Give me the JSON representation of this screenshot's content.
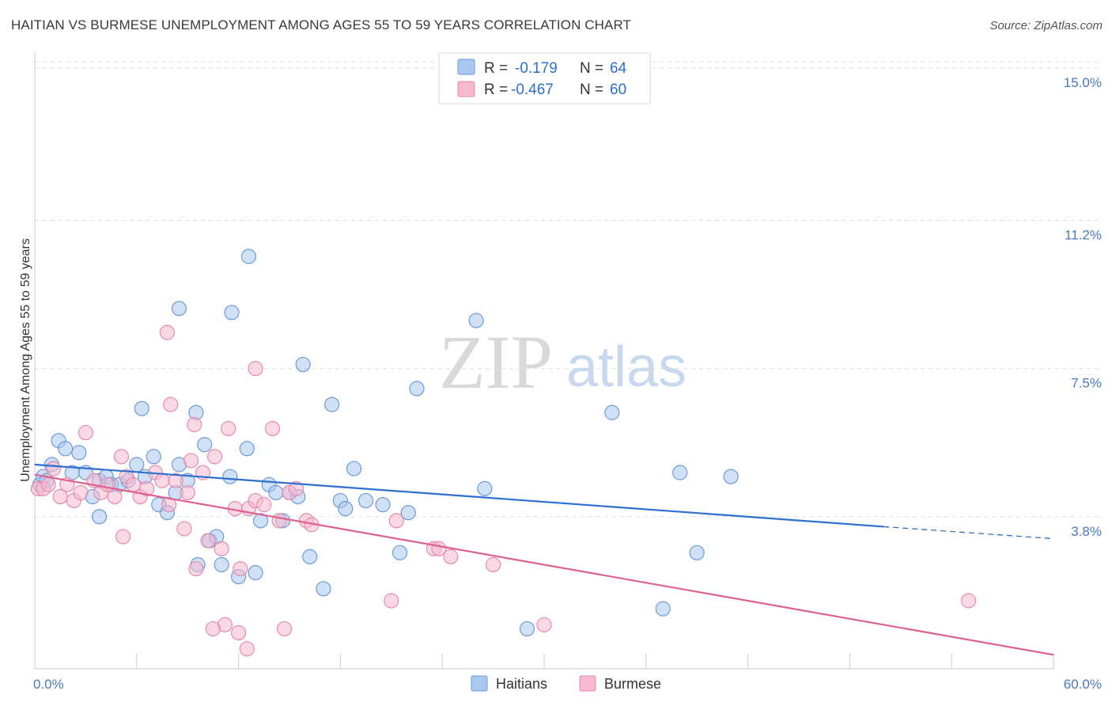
{
  "title": "HAITIAN VS BURMESE UNEMPLOYMENT AMONG AGES 55 TO 59 YEARS CORRELATION CHART",
  "source": "Source: ZipAtlas.com",
  "watermark": {
    "zip": "ZIP",
    "atlas": "atlas"
  },
  "colors": {
    "haitians_fill": "#a9c8f0",
    "haitians_stroke": "#6d9ad6",
    "haitians_line": "#2e6fd1",
    "burmese_fill": "#f6b9cf",
    "burmese_stroke": "#e58bab",
    "burmese_line": "#e0608e",
    "grid": "#dddddd",
    "tick_label": "#4a78c0"
  },
  "legend_top": [
    {
      "r_label": "R =",
      "r_value": "-0.179",
      "n_label": "N =",
      "n_value": "64",
      "series": "Haitians"
    },
    {
      "r_label": "R =",
      "r_value": "-0.467",
      "n_label": "N =",
      "n_value": "60",
      "series": "Burmese"
    }
  ],
  "legend_bottom": [
    "Haitians",
    "Burmese"
  ],
  "chart_data": {
    "type": "scatter",
    "title": "HAITIAN VS BURMESE UNEMPLOYMENT AMONG AGES 55 TO 59 YEARS CORRELATION CHART",
    "xlabel": "",
    "ylabel": "Unemployment Among Ages 55 to 59 years",
    "xlim": [
      0,
      60
    ],
    "ylim": [
      0,
      15.4
    ],
    "x_tick_labels": [
      "0.0%",
      "60.0%"
    ],
    "y_ticks": [
      3.8,
      7.5,
      11.2,
      15.0
    ],
    "y_tick_labels": [
      "3.8%",
      "7.5%",
      "11.2%",
      "15.0%"
    ],
    "grid": "horizontal dashed",
    "legend_position": "top-center",
    "series": [
      {
        "name": "Haitians",
        "trend": {
          "x": [
            0,
            50
          ],
          "y": [
            5.1,
            3.55
          ],
          "dashed_extension_to": [
            60,
            3.25
          ]
        },
        "points": [
          [
            0.3,
            4.6
          ],
          [
            0.5,
            4.8
          ],
          [
            0.7,
            4.7
          ],
          [
            1.0,
            5.1
          ],
          [
            1.4,
            5.7
          ],
          [
            1.8,
            5.5
          ],
          [
            2.2,
            4.9
          ],
          [
            2.6,
            5.4
          ],
          [
            3.0,
            4.9
          ],
          [
            3.4,
            4.3
          ],
          [
            3.8,
            4.7
          ],
          [
            4.2,
            4.8
          ],
          [
            4.5,
            4.6
          ],
          [
            5.0,
            4.6
          ],
          [
            5.5,
            4.7
          ],
          [
            6.0,
            5.1
          ],
          [
            6.5,
            4.8
          ],
          [
            7.0,
            5.3
          ],
          [
            7.3,
            4.1
          ],
          [
            7.8,
            3.9
          ],
          [
            8.3,
            4.4
          ],
          [
            8.5,
            5.1
          ],
          [
            9.0,
            4.7
          ],
          [
            9.5,
            6.4
          ],
          [
            3.8,
            3.8
          ],
          [
            6.3,
            6.5
          ],
          [
            9.6,
            2.6
          ],
          [
            10.0,
            5.6
          ],
          [
            10.3,
            3.2
          ],
          [
            10.7,
            3.3
          ],
          [
            11.0,
            2.6
          ],
          [
            11.5,
            4.8
          ],
          [
            12.0,
            2.3
          ],
          [
            12.5,
            5.5
          ],
          [
            13.0,
            2.4
          ],
          [
            13.3,
            3.7
          ],
          [
            13.8,
            4.6
          ],
          [
            14.2,
            4.4
          ],
          [
            14.6,
            3.7
          ],
          [
            15.0,
            4.4
          ],
          [
            15.5,
            4.3
          ],
          [
            15.8,
            7.6
          ],
          [
            16.2,
            2.8
          ],
          [
            17.0,
            2.0
          ],
          [
            17.5,
            6.6
          ],
          [
            18.0,
            4.2
          ],
          [
            18.3,
            4.0
          ],
          [
            18.8,
            5.0
          ],
          [
            19.5,
            4.2
          ],
          [
            20.5,
            4.1
          ],
          [
            21.5,
            2.9
          ],
          [
            22.0,
            3.9
          ],
          [
            22.5,
            7.0
          ],
          [
            8.5,
            9.0
          ],
          [
            11.6,
            8.9
          ],
          [
            12.6,
            10.3
          ],
          [
            26.0,
            8.7
          ],
          [
            26.5,
            4.5
          ],
          [
            29.0,
            1.0
          ],
          [
            34.0,
            6.4
          ],
          [
            37.0,
            1.5
          ],
          [
            38.0,
            4.9
          ],
          [
            39.0,
            2.9
          ],
          [
            41.0,
            4.8
          ]
        ]
      },
      {
        "name": "Burmese",
        "trend": {
          "x": [
            0,
            60
          ],
          "y": [
            4.85,
            0.35
          ]
        },
        "points": [
          [
            0.2,
            4.5
          ],
          [
            0.5,
            4.5
          ],
          [
            0.8,
            4.6
          ],
          [
            1.1,
            5.0
          ],
          [
            1.5,
            4.3
          ],
          [
            1.9,
            4.6
          ],
          [
            2.3,
            4.2
          ],
          [
            2.7,
            4.4
          ],
          [
            3.0,
            5.9
          ],
          [
            3.5,
            4.7
          ],
          [
            3.9,
            4.4
          ],
          [
            4.3,
            4.6
          ],
          [
            4.7,
            4.3
          ],
          [
            5.1,
            5.3
          ],
          [
            5.4,
            4.8
          ],
          [
            5.8,
            4.6
          ],
          [
            6.2,
            4.3
          ],
          [
            6.6,
            4.5
          ],
          [
            7.1,
            4.9
          ],
          [
            7.5,
            4.7
          ],
          [
            7.9,
            4.1
          ],
          [
            8.3,
            4.7
          ],
          [
            8.8,
            3.5
          ],
          [
            9.2,
            5.2
          ],
          [
            5.2,
            3.3
          ],
          [
            7.8,
            8.4
          ],
          [
            8.0,
            6.6
          ],
          [
            9.0,
            4.4
          ],
          [
            9.4,
            6.1
          ],
          [
            9.9,
            4.9
          ],
          [
            10.2,
            3.2
          ],
          [
            10.6,
            5.3
          ],
          [
            11.0,
            3.0
          ],
          [
            11.4,
            6.0
          ],
          [
            11.8,
            4.0
          ],
          [
            12.1,
            2.5
          ],
          [
            12.6,
            4.0
          ],
          [
            13.0,
            4.2
          ],
          [
            13.5,
            4.1
          ],
          [
            14.0,
            6.0
          ],
          [
            14.4,
            3.7
          ],
          [
            15.0,
            4.4
          ],
          [
            15.4,
            4.5
          ],
          [
            16.0,
            3.7
          ],
          [
            16.3,
            3.6
          ],
          [
            9.5,
            2.5
          ],
          [
            12.0,
            0.9
          ],
          [
            11.2,
            1.1
          ],
          [
            10.5,
            1.0
          ],
          [
            12.5,
            0.5
          ],
          [
            14.7,
            1.0
          ],
          [
            13.0,
            7.5
          ],
          [
            21.0,
            1.7
          ],
          [
            21.3,
            3.7
          ],
          [
            23.5,
            3.0
          ],
          [
            23.8,
            3.0
          ],
          [
            24.5,
            2.8
          ],
          [
            27.0,
            2.6
          ],
          [
            30.0,
            1.1
          ],
          [
            55.0,
            1.7
          ]
        ]
      }
    ]
  }
}
